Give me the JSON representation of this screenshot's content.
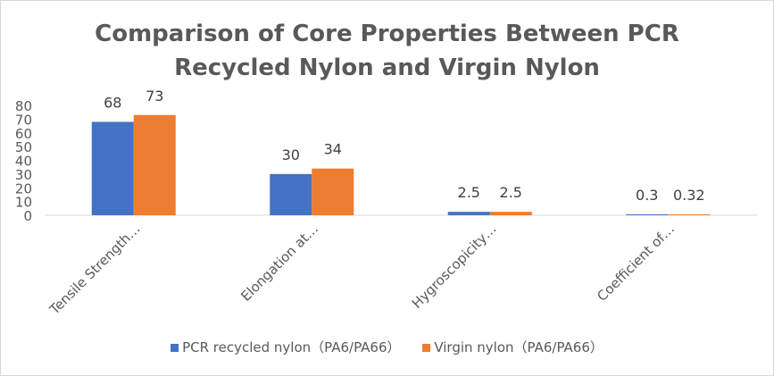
{
  "chart_data": {
    "type": "bar",
    "title_lines": [
      "Comparison of Core Properties Between PCR",
      "Recycled Nylon and Virgin Nylon"
    ],
    "categories": [
      "Tensile Strength…",
      "Elongation at…",
      "Hygroscopicity…",
      "Coefficient of…"
    ],
    "series": [
      {
        "name": "PCR recycled nylon（PA6/PA66）",
        "color": "#4472c4",
        "values": [
          68,
          30,
          2.5,
          0.3
        ]
      },
      {
        "name": "Virgin nylon（PA6/PA66）",
        "color": "#ed7d31",
        "values": [
          73,
          34,
          2.5,
          0.32
        ]
      }
    ],
    "yticks": [
      0,
      10,
      20,
      30,
      40,
      50,
      60,
      70,
      80
    ],
    "ylim": [
      0,
      80
    ],
    "grid": false,
    "legend_position": "bottom"
  }
}
